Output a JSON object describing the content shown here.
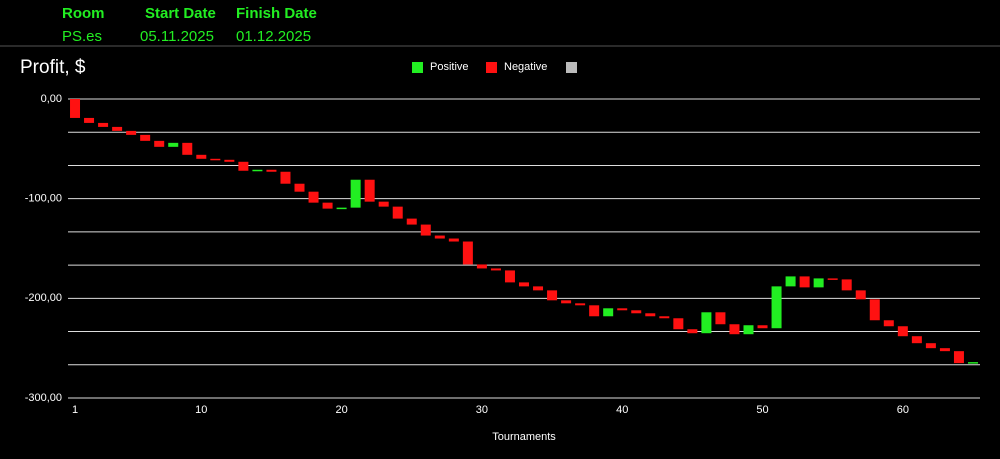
{
  "header": {
    "columns": [
      "Room",
      "Start Date",
      "Finish Date"
    ],
    "values": [
      "PS.es",
      "05.11.2025",
      "01.12.2025"
    ]
  },
  "chart_data": {
    "type": "waterfall",
    "title": "Profit, $",
    "xlabel": "Tournaments",
    "legend": [
      {
        "name": "Positive",
        "color": "#22ee22"
      },
      {
        "name": "Negative",
        "color": "#ff1111"
      }
    ],
    "x": [
      1,
      2,
      3,
      4,
      5,
      6,
      7,
      8,
      9,
      10,
      11,
      12,
      13,
      14,
      15,
      16,
      17,
      18,
      19,
      20,
      21,
      22,
      23,
      24,
      25,
      26,
      27,
      28,
      29,
      30,
      31,
      32,
      33,
      34,
      35,
      36,
      37,
      38,
      39,
      40,
      41,
      42,
      43,
      44,
      45,
      46,
      47,
      48,
      49,
      50,
      51,
      52,
      53,
      54,
      55,
      56,
      57,
      58,
      59,
      60,
      61,
      62,
      63,
      64,
      65
    ],
    "values": [
      -19,
      -5,
      -4,
      -4,
      -4,
      -6,
      -6,
      4,
      -12,
      -4,
      -1,
      -2,
      -9,
      1,
      -2,
      -12,
      -8,
      -11,
      -6,
      1,
      28,
      -22,
      -5,
      -12,
      -6,
      -11,
      -3,
      -3,
      -23,
      -4,
      -2,
      -12,
      -4,
      -4,
      -10,
      -3,
      -2,
      -11,
      8,
      -2,
      -3,
      -3,
      -2,
      -11,
      -4,
      21,
      -12,
      -10,
      9,
      -3,
      42,
      10,
      -11,
      9,
      -1,
      -11,
      -9,
      -21,
      -6,
      -10,
      -7,
      -5,
      -3,
      -12,
      1
    ],
    "xlim": [
      0.5,
      65.5
    ],
    "xticks": [
      1,
      10,
      20,
      30,
      40,
      50,
      60
    ],
    "ylim": [
      -300,
      0
    ],
    "yticks": [
      {
        "value": 0,
        "label": "0,00"
      },
      {
        "value": -100,
        "label": "-100,00"
      },
      {
        "value": -200,
        "label": "-200,00"
      },
      {
        "value": -300,
        "label": "-300,00"
      }
    ],
    "grid": true
  }
}
